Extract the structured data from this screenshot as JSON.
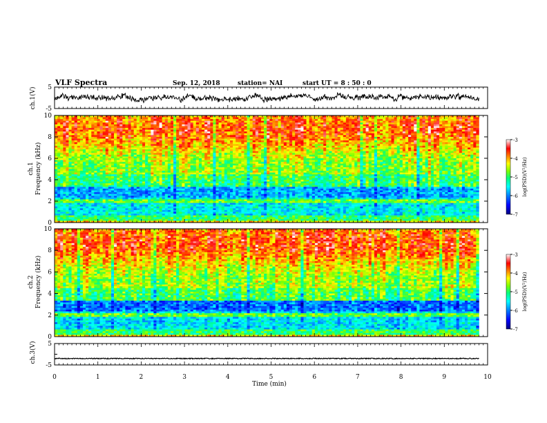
{
  "header": {
    "title": "VLF Spectra",
    "date": "Sep. 12, 2018",
    "station": "station= NAI",
    "start": "start  UT =   8 : 50 : 0"
  },
  "colorbar": {
    "label": "log(PSD)(V²/Hz)",
    "ticks": [
      "-3",
      "-4",
      "-5",
      "-6",
      "-7"
    ],
    "colors": [
      "#000080",
      "#0000ff",
      "#0080ff",
      "#00ffff",
      "#00ff80",
      "#80ff00",
      "#ffff00",
      "#ff8000",
      "#ff0000",
      "#ffffff"
    ]
  },
  "chart_data": [
    {
      "type": "line",
      "panel": "ch.1 waveform",
      "ylabel": "ch.1(V)",
      "ylim": [
        -5,
        5
      ],
      "yticks": [
        "5",
        "-5"
      ],
      "x_range_min": [
        0,
        9.8
      ],
      "description": "noisy trace around 0 V spanning about -2.5 to +2.5 V"
    },
    {
      "type": "heatmap",
      "panel": "ch.1 spectrogram",
      "ylabel": "ch.1",
      "ylabel2": "Frequency (kHz)",
      "ylim": [
        0,
        10
      ],
      "yticks": [
        "0",
        "2",
        "4",
        "6",
        "8",
        "10"
      ],
      "x_range_min": [
        0,
        9.8
      ],
      "z_range_log_psd": [
        -7,
        -3
      ]
    },
    {
      "type": "heatmap",
      "panel": "ch.2 spectrogram",
      "ylabel": "ch.2",
      "ylabel2": "Frequency (kHz)",
      "ylim": [
        0,
        10
      ],
      "yticks": [
        "0",
        "2",
        "4",
        "6",
        "8",
        "10"
      ],
      "x_range_min": [
        0,
        9.8
      ],
      "z_range_log_psd": [
        -7,
        -3
      ]
    },
    {
      "type": "line",
      "panel": "ch.3 waveform",
      "ylabel": "ch.3(V)",
      "ylim": [
        -5,
        5
      ],
      "yticks": [
        "5",
        "-5"
      ],
      "x_range_min": [
        0,
        9.8
      ],
      "description": "flat trace near -2 V"
    }
  ],
  "xaxis": {
    "label": "Time  (min)",
    "ticks": [
      "0",
      "1",
      "2",
      "3",
      "4",
      "5",
      "6",
      "7",
      "8",
      "9",
      "10"
    ],
    "range": [
      0,
      10
    ]
  }
}
